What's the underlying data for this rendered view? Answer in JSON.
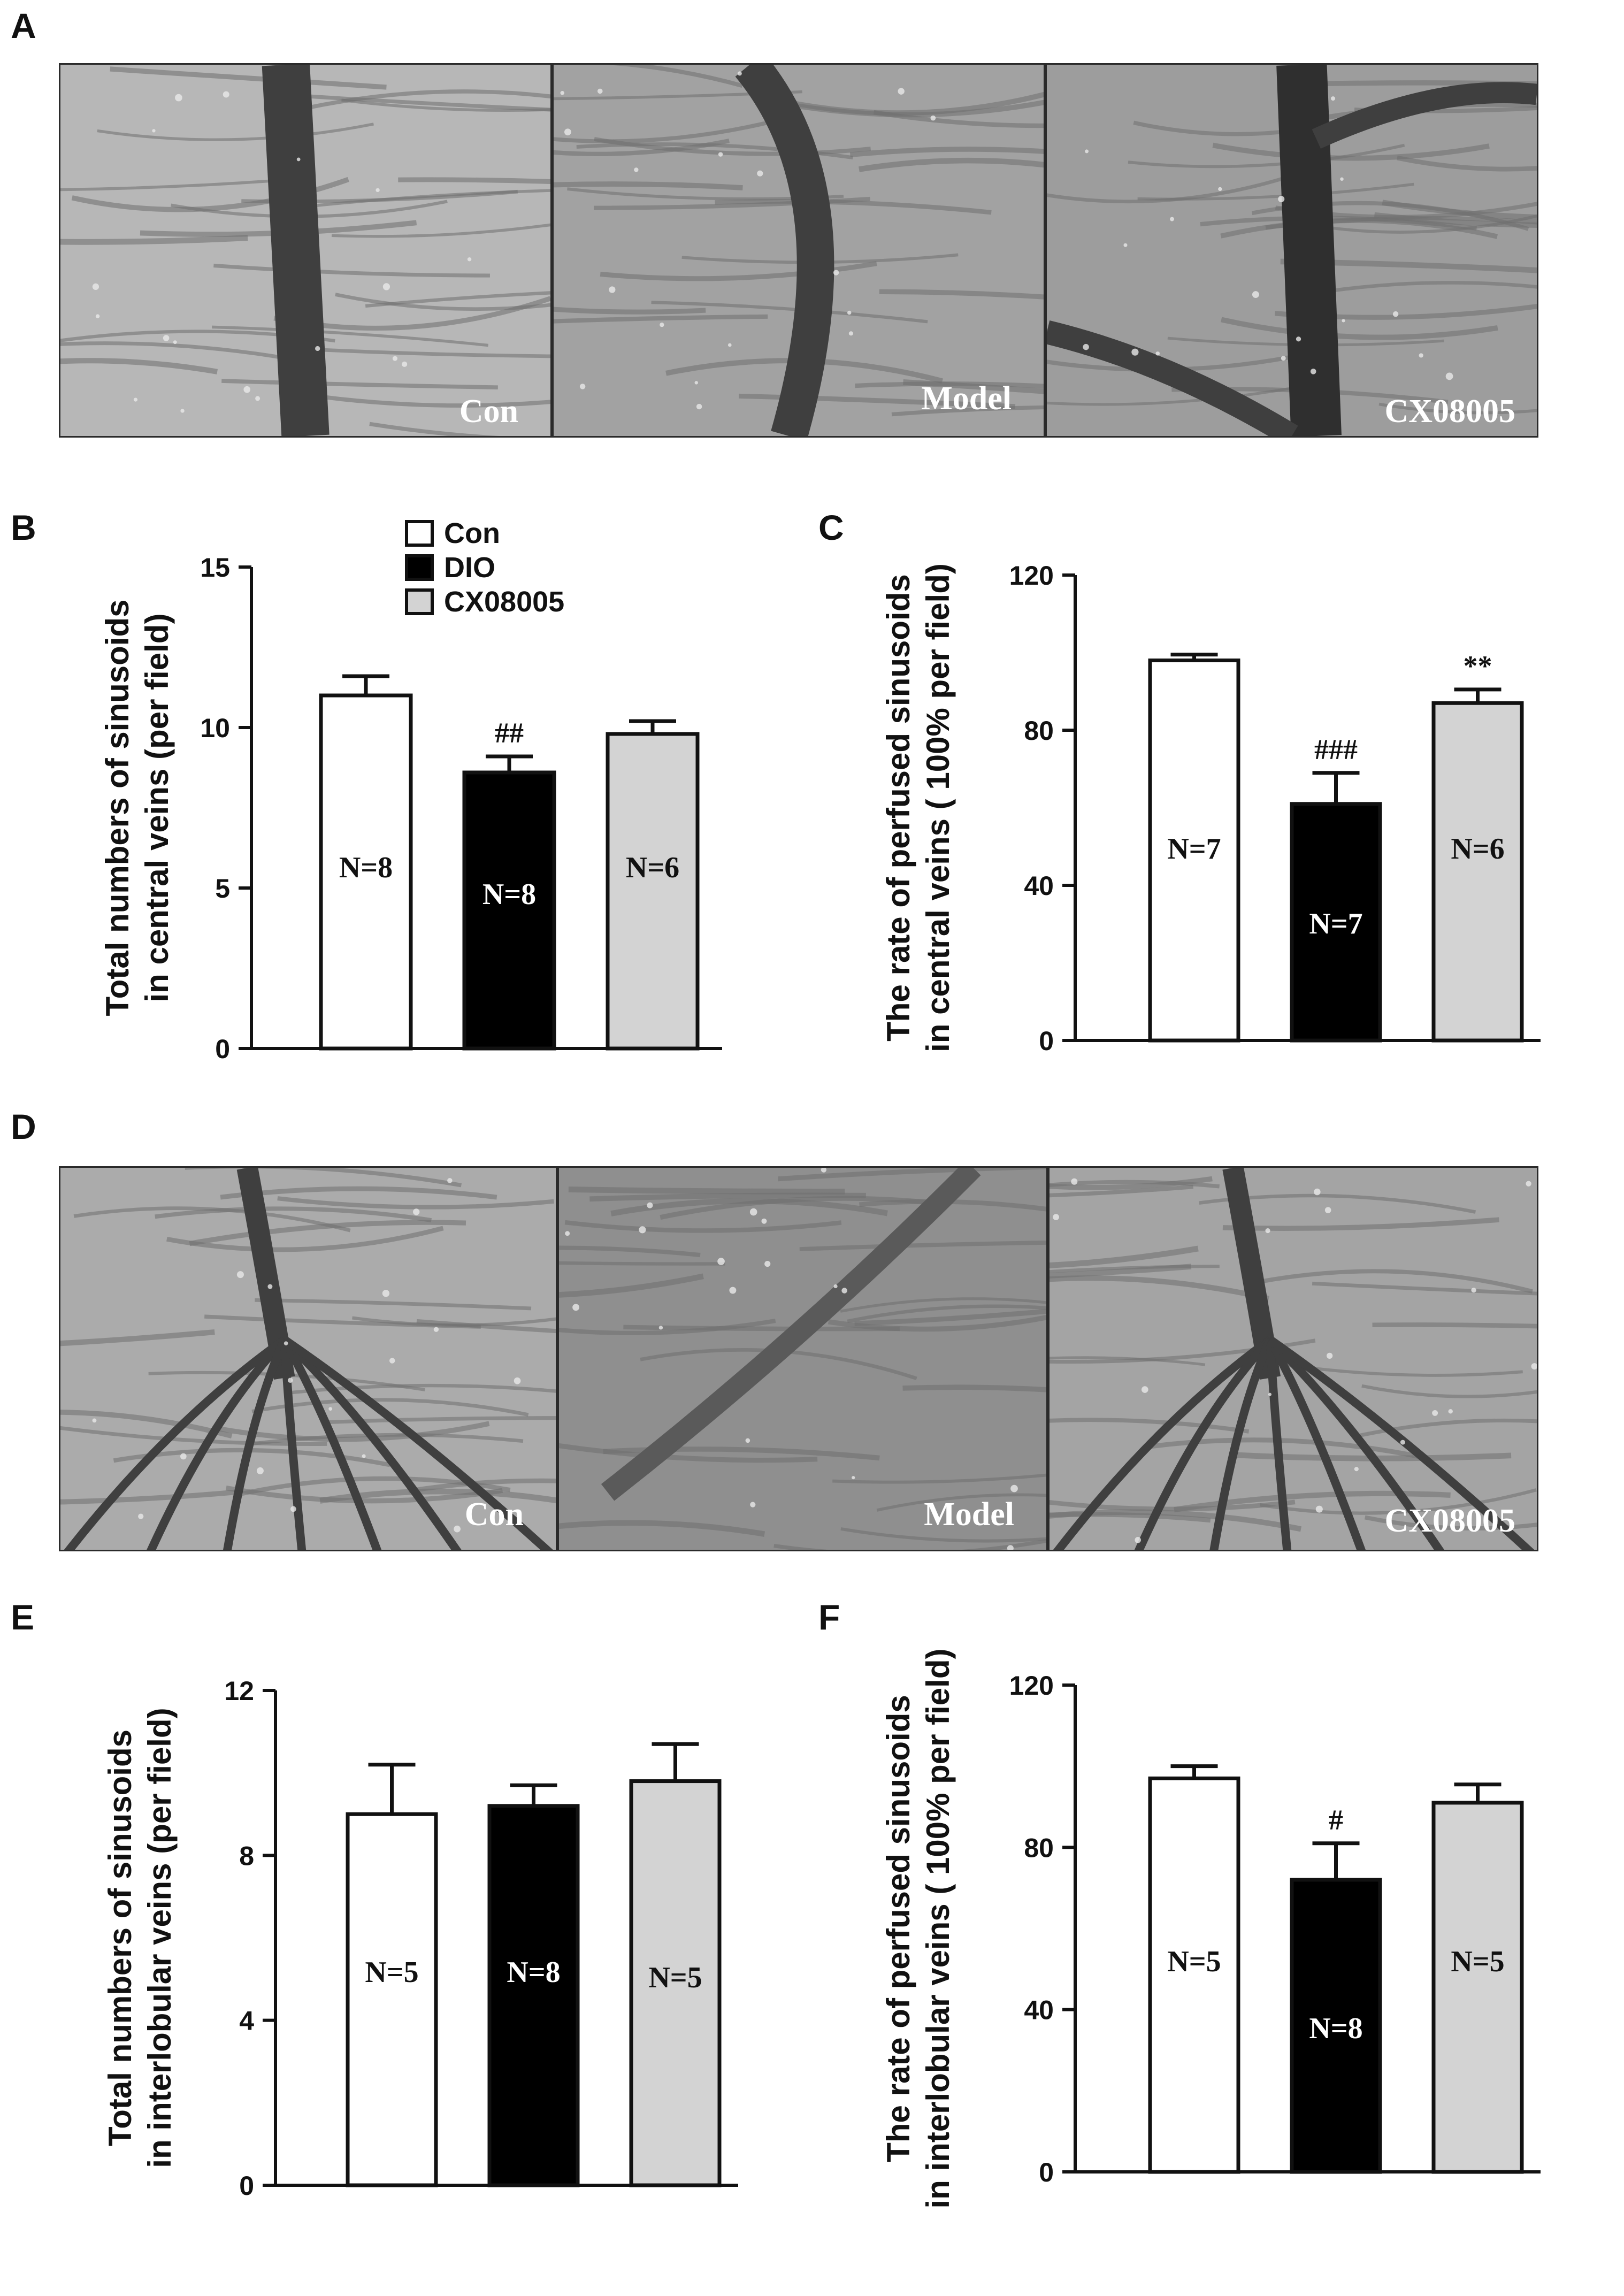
{
  "panels": {
    "A": "A",
    "B": "B",
    "C": "C",
    "D": "D",
    "E": "E",
    "F": "F"
  },
  "images": {
    "A": [
      {
        "label": "Con",
        "tone": "#b7b7b7",
        "vessel": "vertical"
      },
      {
        "label": "Model",
        "tone": "#a2a2a2",
        "vessel": "curved"
      },
      {
        "label": "CX08005",
        "tone": "#9d9d9d",
        "vessel": "branch"
      }
    ],
    "D": [
      {
        "label": "Con",
        "tone": "#ababab",
        "vessel": "tree"
      },
      {
        "label": "Model",
        "tone": "#8f8f8f",
        "vessel": "diagonal"
      },
      {
        "label": "CX08005",
        "tone": "#a4a4a4",
        "vessel": "tree"
      }
    ]
  },
  "legend": {
    "entries": [
      {
        "name": "Con",
        "color": "#ffffff"
      },
      {
        "name": "DIO",
        "color": "#000000"
      },
      {
        "name": "CX08005",
        "color": "#d3d3d3"
      }
    ]
  },
  "chart_data": [
    {
      "id": "B",
      "type": "bar",
      "ylabel": [
        "Total numbers of sinusoids",
        "in central veins  (per field)"
      ],
      "ylim": [
        0,
        15
      ],
      "yticks": [
        0,
        5,
        10,
        15
      ],
      "bars": [
        {
          "value": 11.0,
          "error": 0.6,
          "n": "N=8",
          "color": "#ffffff",
          "sig": ""
        },
        {
          "value": 8.6,
          "error": 0.5,
          "n": "N=8",
          "color": "#000000",
          "sig": "##"
        },
        {
          "value": 9.8,
          "error": 0.4,
          "n": "N=6",
          "color": "#d3d3d3",
          "sig": ""
        }
      ]
    },
    {
      "id": "C",
      "type": "bar",
      "ylabel": [
        "The rate of perfused sinusoids",
        "in central veins ( 100%  per field)"
      ],
      "ylim": [
        0,
        120
      ],
      "yticks": [
        0,
        40,
        80,
        120
      ],
      "bars": [
        {
          "value": 98,
          "error": 1.5,
          "n": "N=7",
          "color": "#ffffff",
          "sig": ""
        },
        {
          "value": 61,
          "error": 8,
          "n": "N=7",
          "color": "#000000",
          "sig": "###"
        },
        {
          "value": 87,
          "error": 3.5,
          "n": "N=6",
          "color": "#d3d3d3",
          "sig": "**"
        }
      ]
    },
    {
      "id": "E",
      "type": "bar",
      "ylabel": [
        "Total numbers of sinusoids",
        "in interlobular veins  (per field)"
      ],
      "ylim": [
        0,
        12
      ],
      "yticks": [
        0,
        4,
        8,
        12
      ],
      "bars": [
        {
          "value": 9.0,
          "error": 1.2,
          "n": "N=5",
          "color": "#ffffff",
          "sig": ""
        },
        {
          "value": 9.2,
          "error": 0.5,
          "n": "N=8",
          "color": "#000000",
          "sig": ""
        },
        {
          "value": 9.8,
          "error": 0.9,
          "n": "N=5",
          "color": "#d3d3d3",
          "sig": ""
        }
      ]
    },
    {
      "id": "F",
      "type": "bar",
      "ylabel": [
        "The rate of perfused sinusoids",
        "in interlobular veins ( 100%  per field)"
      ],
      "ylim": [
        0,
        120
      ],
      "yticks": [
        0,
        40,
        80,
        120
      ],
      "bars": [
        {
          "value": 97,
          "error": 3,
          "n": "N=5",
          "color": "#ffffff",
          "sig": ""
        },
        {
          "value": 72,
          "error": 9,
          "n": "N=8",
          "color": "#000000",
          "sig": "#"
        },
        {
          "value": 91,
          "error": 4.5,
          "n": "N=5",
          "color": "#d3d3d3",
          "sig": ""
        }
      ]
    }
  ]
}
